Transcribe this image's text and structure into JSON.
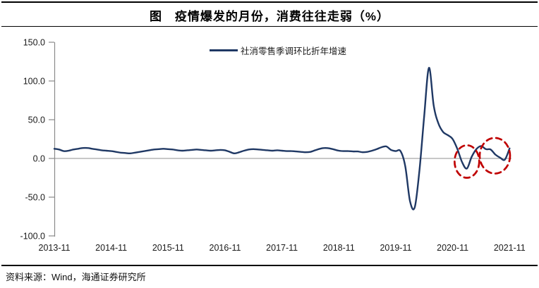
{
  "title": "图　疫情爆发的月份，消费往往走弱（%）",
  "legend": {
    "label": "社消零售季调环比折年增速"
  },
  "source": {
    "text": "资料来源：Wind，海通证券研究所"
  },
  "colors": {
    "line": "#1F3864",
    "highlight": "#C00000",
    "axis": "#8a8a8a",
    "zero_line": "#8f8f8f",
    "tick_text": "#1a1a1a"
  },
  "chart_data": {
    "type": "line",
    "title": "图　疫情爆发的月份，消费往往走弱（%）",
    "xlabel": "",
    "ylabel": "",
    "ylim": [
      -100,
      150
    ],
    "grid": false,
    "legend_position": "top-center",
    "y_ticks": [
      150,
      100,
      50,
      0,
      -50,
      -100
    ],
    "y_tick_labels": [
      "150.0",
      "100.0",
      "50.0",
      "0.0",
      "-50.0",
      "-100.0"
    ],
    "x_tick_labels": [
      "2013-11",
      "2014-11",
      "2015-11",
      "2016-11",
      "2017-11",
      "2018-11",
      "2019-11",
      "2020-11",
      "2021-11"
    ],
    "series": [
      {
        "name": "社消零售季调环比折年增速",
        "start": "2013-11",
        "end": "2021-11",
        "freq": "monthly",
        "values": [
          12.5,
          11.5,
          9.5,
          10.0,
          11.5,
          12.5,
          13.5,
          13.5,
          12.5,
          11.5,
          10.5,
          10.0,
          9.5,
          8.5,
          7.5,
          7.0,
          6.5,
          7.5,
          8.5,
          9.5,
          10.5,
          11.5,
          12.0,
          12.5,
          12.0,
          11.5,
          10.5,
          10.0,
          10.5,
          11.0,
          11.5,
          11.0,
          10.5,
          10.0,
          10.5,
          11.0,
          10.5,
          8.5,
          6.5,
          8.0,
          10.0,
          11.5,
          12.0,
          11.5,
          11.0,
          10.5,
          10.0,
          10.5,
          10.0,
          9.5,
          9.5,
          9.0,
          8.5,
          8.0,
          8.5,
          10.5,
          12.5,
          13.5,
          13.0,
          11.5,
          10.0,
          9.5,
          9.5,
          9.0,
          9.0,
          8.0,
          8.5,
          10.0,
          12.0,
          14.5,
          15.5,
          11.0,
          9.5,
          9.5,
          -10.0,
          -55.0,
          -63.0,
          -15.0,
          55.0,
          117.0,
          68.0,
          45.0,
          34.0,
          30.0,
          25.0,
          12.0,
          -5.0,
          -13.0,
          2.0,
          12.0,
          16.0,
          12.0,
          11.5,
          5.0,
          1.0,
          -1.5,
          13.0
        ]
      }
    ],
    "annotations": [
      {
        "type": "dashed-ellipse",
        "label": "2021-02 outbreak dip",
        "month_index": 87.0,
        "value": -4.0,
        "rx_months": 2.6,
        "ry_value": 21,
        "color": "#C00000"
      },
      {
        "type": "dashed-ellipse",
        "label": "2021-08/10 outbreak dip",
        "month_index": 92.9,
        "value": 3.5,
        "rx_months": 3.2,
        "ry_value": 23,
        "color": "#C00000"
      }
    ]
  }
}
